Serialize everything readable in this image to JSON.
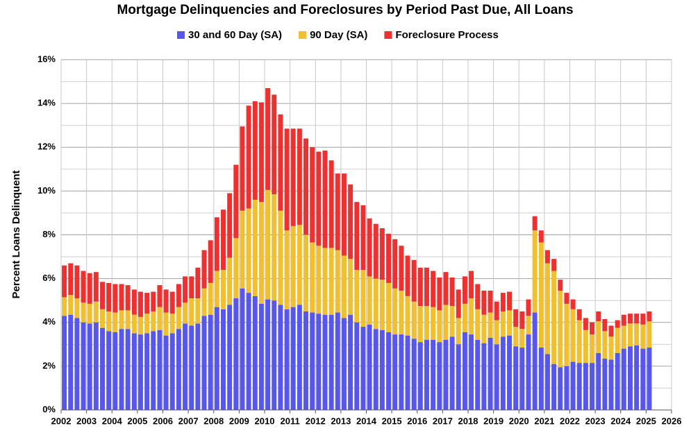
{
  "chart_data": {
    "type": "stacked_bar",
    "title": "Mortgage Delinquencies and Foreclosures by Period Past Due, All Loans",
    "ylabel": "Percent Loans Delinquent",
    "x": [
      2002,
      2002.25,
      2002.5,
      2002.75,
      2003,
      2003.25,
      2003.5,
      2003.75,
      2004,
      2004.25,
      2004.5,
      2004.75,
      2005,
      2005.25,
      2005.5,
      2005.75,
      2006,
      2006.25,
      2006.5,
      2006.75,
      2007,
      2007.25,
      2007.5,
      2007.75,
      2008,
      2008.25,
      2008.5,
      2008.75,
      2009,
      2009.25,
      2009.5,
      2009.75,
      2010,
      2010.25,
      2010.5,
      2010.75,
      2011,
      2011.25,
      2011.5,
      2011.75,
      2012,
      2012.25,
      2012.5,
      2012.75,
      2013,
      2013.25,
      2013.5,
      2013.75,
      2014,
      2014.25,
      2014.5,
      2014.75,
      2015,
      2015.25,
      2015.5,
      2015.75,
      2016,
      2016.25,
      2016.5,
      2016.75,
      2017,
      2017.25,
      2017.5,
      2017.75,
      2018,
      2018.25,
      2018.5,
      2018.75,
      2019,
      2019.25,
      2019.5,
      2019.75,
      2020,
      2020.25,
      2020.5,
      2020.75,
      2021,
      2021.25,
      2021.5,
      2021.75,
      2022,
      2022.25,
      2022.5,
      2022.75,
      2023,
      2023.25,
      2023.5,
      2023.75,
      2024,
      2024.25,
      2024.5,
      2024.75,
      2025
    ],
    "series": [
      {
        "name": "30 and 60 Day (SA)",
        "color": "#5757ee",
        "values": [
          4.3,
          4.35,
          4.2,
          4.0,
          3.95,
          4.0,
          3.75,
          3.6,
          3.55,
          3.7,
          3.7,
          3.5,
          3.45,
          3.5,
          3.6,
          3.65,
          3.4,
          3.5,
          3.7,
          3.95,
          3.85,
          3.95,
          4.3,
          4.35,
          4.7,
          4.6,
          4.8,
          5.1,
          5.55,
          5.35,
          5.2,
          4.85,
          5.05,
          5.0,
          4.8,
          4.6,
          4.7,
          4.8,
          4.5,
          4.45,
          4.4,
          4.35,
          4.35,
          4.45,
          4.2,
          4.35,
          4.0,
          3.8,
          3.9,
          3.7,
          3.65,
          3.55,
          3.45,
          3.45,
          3.4,
          3.25,
          3.1,
          3.2,
          3.2,
          3.1,
          3.2,
          3.35,
          3.0,
          3.55,
          3.45,
          3.2,
          3.05,
          3.3,
          3.0,
          3.35,
          3.4,
          2.9,
          2.85,
          3.45,
          4.45,
          2.85,
          2.55,
          2.1,
          1.95,
          2.0,
          2.2,
          2.15,
          2.15,
          2.15,
          2.6,
          2.35,
          2.3,
          2.6,
          2.8,
          2.9,
          2.95,
          2.8,
          2.85
        ]
      },
      {
        "name": "90 Day (SA)",
        "color": "#f0c030",
        "values": [
          0.85,
          0.9,
          0.9,
          0.9,
          0.9,
          0.95,
          0.85,
          0.9,
          0.9,
          0.85,
          0.85,
          0.85,
          0.8,
          0.9,
          0.9,
          1.05,
          1.05,
          0.9,
          1.0,
          0.95,
          1.25,
          1.15,
          1.25,
          1.45,
          1.65,
          1.8,
          2.15,
          2.75,
          3.55,
          3.85,
          4.4,
          4.65,
          5.0,
          4.85,
          4.3,
          3.6,
          3.7,
          3.65,
          3.5,
          3.2,
          3.1,
          3.05,
          3.05,
          2.85,
          2.85,
          2.55,
          2.4,
          2.6,
          2.2,
          2.3,
          2.3,
          2.25,
          2.1,
          2.0,
          1.8,
          1.7,
          1.65,
          1.55,
          1.5,
          1.45,
          1.6,
          1.4,
          1.2,
          1.3,
          1.65,
          1.4,
          1.3,
          1.15,
          1.1,
          1.15,
          1.15,
          0.9,
          0.85,
          0.85,
          3.75,
          4.8,
          4.15,
          4.25,
          3.5,
          2.85,
          2.4,
          1.95,
          1.5,
          1.3,
          1.45,
          1.25,
          1.05,
          1.15,
          1.05,
          1.05,
          1.0,
          1.1,
          1.2
        ]
      },
      {
        "name": "Foreclosure Process",
        "color": "#ee3030",
        "values": [
          1.45,
          1.45,
          1.5,
          1.45,
          1.4,
          1.35,
          1.25,
          1.3,
          1.3,
          1.2,
          1.15,
          1.15,
          1.15,
          0.95,
          0.9,
          1.0,
          1.05,
          1.0,
          1.05,
          1.2,
          1.0,
          1.4,
          1.75,
          1.95,
          2.45,
          2.75,
          2.95,
          3.35,
          3.85,
          4.7,
          4.5,
          4.55,
          4.65,
          4.55,
          4.4,
          4.65,
          4.45,
          4.4,
          4.4,
          4.35,
          4.3,
          4.45,
          4.0,
          3.5,
          3.75,
          3.4,
          3.1,
          2.95,
          2.65,
          2.5,
          2.35,
          2.25,
          2.25,
          2.05,
          1.85,
          1.9,
          1.75,
          1.75,
          1.65,
          1.5,
          1.5,
          1.3,
          1.3,
          1.25,
          1.25,
          1.15,
          1.1,
          1.0,
          0.85,
          0.85,
          0.85,
          0.8,
          0.8,
          0.75,
          0.65,
          0.55,
          0.6,
          0.55,
          0.5,
          0.5,
          0.45,
          0.5,
          0.55,
          0.55,
          0.45,
          0.55,
          0.5,
          0.35,
          0.5,
          0.45,
          0.45,
          0.5,
          0.45
        ]
      }
    ],
    "xlim": [
      2002,
      2026
    ],
    "xticks": [
      2002,
      2003,
      2004,
      2005,
      2006,
      2007,
      2008,
      2009,
      2010,
      2011,
      2012,
      2013,
      2014,
      2015,
      2016,
      2017,
      2018,
      2019,
      2020,
      2021,
      2022,
      2023,
      2024,
      2025,
      2026
    ],
    "ylim": [
      0,
      16
    ],
    "yticks": [
      {
        "value": 0,
        "label": "0%"
      },
      {
        "value": 2,
        "label": "2%"
      },
      {
        "value": 4,
        "label": "4%"
      },
      {
        "value": 6,
        "label": "6%"
      },
      {
        "value": 8,
        "label": "8%"
      },
      {
        "value": 10,
        "label": "10%"
      },
      {
        "value": 12,
        "label": "12%"
      },
      {
        "value": 14,
        "label": "14%"
      },
      {
        "value": 16,
        "label": "16%"
      }
    ],
    "y_minor_ticks": [
      1,
      3,
      5,
      7,
      9,
      11,
      13,
      15
    ],
    "grid": true,
    "legend": "top"
  }
}
